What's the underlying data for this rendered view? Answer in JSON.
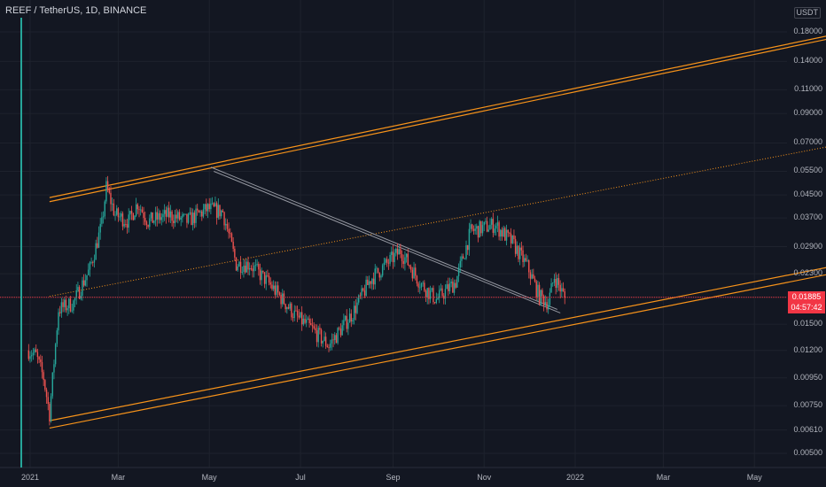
{
  "header": {
    "symbol": "REEF",
    "separator": " / ",
    "quote": "TetherUS",
    "interval": ", 1D, ",
    "exchange": "BINANCE"
  },
  "axis": {
    "currency": "USDT"
  },
  "price_tag": {
    "price": "0.01885",
    "countdown": "04:57:42",
    "color": "#f23645"
  },
  "colors": {
    "background": "#131722",
    "up": "#26a69a",
    "down": "#ef5350",
    "channel": "#f7931a",
    "trendline": "#9598a1"
  },
  "chart_data": {
    "type": "candlestick",
    "y_scale": "log",
    "y_ticks": [
      "0.18000",
      "0.14000",
      "0.11000",
      "0.09000",
      "0.07000",
      "0.05500",
      "0.04500",
      "0.03700",
      "0.02900",
      "0.02300",
      "0.01885",
      "0.01500",
      "0.01200",
      "0.00950",
      "0.00750",
      "0.00610",
      "0.00500"
    ],
    "x_ticks": [
      "2021",
      "Mar",
      "May",
      "Jul",
      "Sep",
      "Nov",
      "2022",
      "Mar",
      "May"
    ],
    "price_path": [
      {
        "date": "2020-12-31",
        "price": 0.012
      },
      {
        "date": "2021-01-05",
        "price": 0.0115
      },
      {
        "date": "2021-01-10",
        "price": 0.0095
      },
      {
        "date": "2021-01-14",
        "price": 0.007
      },
      {
        "date": "2021-01-20",
        "price": 0.017
      },
      {
        "date": "2021-01-30",
        "price": 0.018
      },
      {
        "date": "2021-02-10",
        "price": 0.024
      },
      {
        "date": "2021-02-18",
        "price": 0.035
      },
      {
        "date": "2021-02-21",
        "price": 0.048
      },
      {
        "date": "2021-02-27",
        "price": 0.038
      },
      {
        "date": "2021-03-08",
        "price": 0.036
      },
      {
        "date": "2021-03-14",
        "price": 0.042
      },
      {
        "date": "2021-03-21",
        "price": 0.036
      },
      {
        "date": "2021-04-04",
        "price": 0.038
      },
      {
        "date": "2021-04-16",
        "price": 0.036
      },
      {
        "date": "2021-04-30",
        "price": 0.04
      },
      {
        "date": "2021-05-10",
        "price": 0.039
      },
      {
        "date": "2021-05-19",
        "price": 0.025
      },
      {
        "date": "2021-05-28",
        "price": 0.025
      },
      {
        "date": "2021-06-09",
        "price": 0.0215
      },
      {
        "date": "2021-06-19",
        "price": 0.0185
      },
      {
        "date": "2021-06-28",
        "price": 0.016
      },
      {
        "date": "2021-07-08",
        "price": 0.0145
      },
      {
        "date": "2021-07-20",
        "price": 0.0125
      },
      {
        "date": "2021-08-05",
        "price": 0.0165
      },
      {
        "date": "2021-08-17",
        "price": 0.022
      },
      {
        "date": "2021-09-06",
        "price": 0.028
      },
      {
        "date": "2021-09-20",
        "price": 0.021
      },
      {
        "date": "2021-09-30",
        "price": 0.0185
      },
      {
        "date": "2021-10-13",
        "price": 0.0215
      },
      {
        "date": "2021-10-23",
        "price": 0.033
      },
      {
        "date": "2021-11-08",
        "price": 0.035
      },
      {
        "date": "2021-11-20",
        "price": 0.03
      },
      {
        "date": "2021-11-30",
        "price": 0.0245
      },
      {
        "date": "2021-12-08",
        "price": 0.019
      },
      {
        "date": "2021-12-14",
        "price": 0.018
      },
      {
        "date": "2021-12-18",
        "price": 0.0225
      },
      {
        "date": "2021-12-25",
        "price": 0.0188
      }
    ],
    "last_price": 0.01885,
    "drawings": {
      "channel_upper_outer": [
        {
          "date": "2021-01-14",
          "price": 0.044
        },
        {
          "date": "2022-07-08",
          "price": 0.183
        }
      ],
      "channel_upper_inner": [
        {
          "date": "2021-01-14",
          "price": 0.0425
        },
        {
          "date": "2022-07-08",
          "price": 0.178
        }
      ],
      "channel_mid_dotted": [
        {
          "date": "2021-01-14",
          "price": 0.019
        },
        {
          "date": "2022-07-08",
          "price": 0.071
        }
      ],
      "channel_lower_outer": [
        {
          "date": "2021-01-14",
          "price": 0.0066
        },
        {
          "date": "2022-07-08",
          "price": 0.0255
        }
      ],
      "channel_lower_inner": [
        {
          "date": "2021-01-14",
          "price": 0.0062
        },
        {
          "date": "2022-07-08",
          "price": 0.024
        }
      ],
      "trendline_a": [
        {
          "date": "2021-05-02",
          "price": 0.057
        },
        {
          "date": "2021-12-20",
          "price": 0.017
        }
      ],
      "trendline_b": [
        {
          "date": "2021-05-04",
          "price": 0.055
        },
        {
          "date": "2021-12-22",
          "price": 0.0165
        }
      ]
    }
  }
}
